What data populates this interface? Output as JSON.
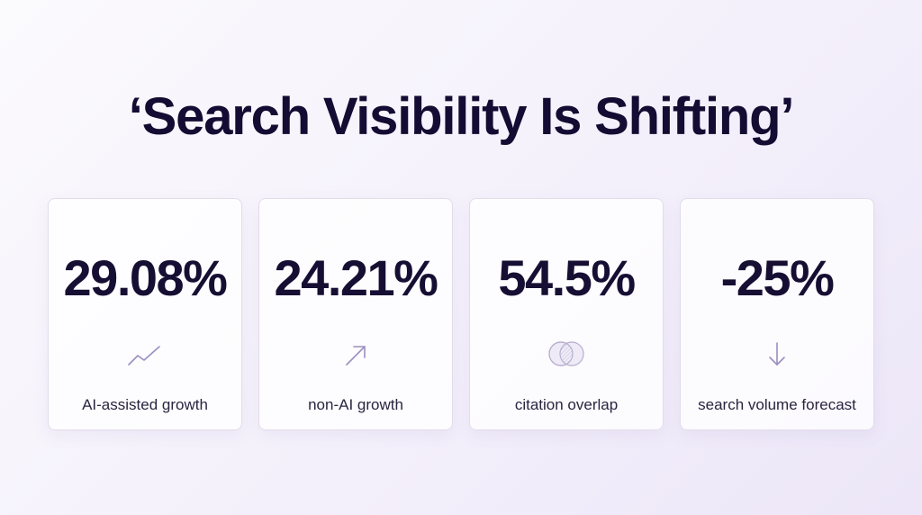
{
  "title": "‘Search Visibility Is Shifting’",
  "accent_color": "#9b8fc0",
  "stats": [
    {
      "value": "29.08%",
      "label": "AI-assisted growth",
      "icon": "trend-line-icon"
    },
    {
      "value": "24.21%",
      "label": "non-AI growth",
      "icon": "arrow-up-right-icon"
    },
    {
      "value": "54.5%",
      "label": "citation overlap",
      "icon": "overlap-circles-icon"
    },
    {
      "value": "-25%",
      "label": "search volume forecast",
      "icon": "arrow-down-icon"
    }
  ]
}
